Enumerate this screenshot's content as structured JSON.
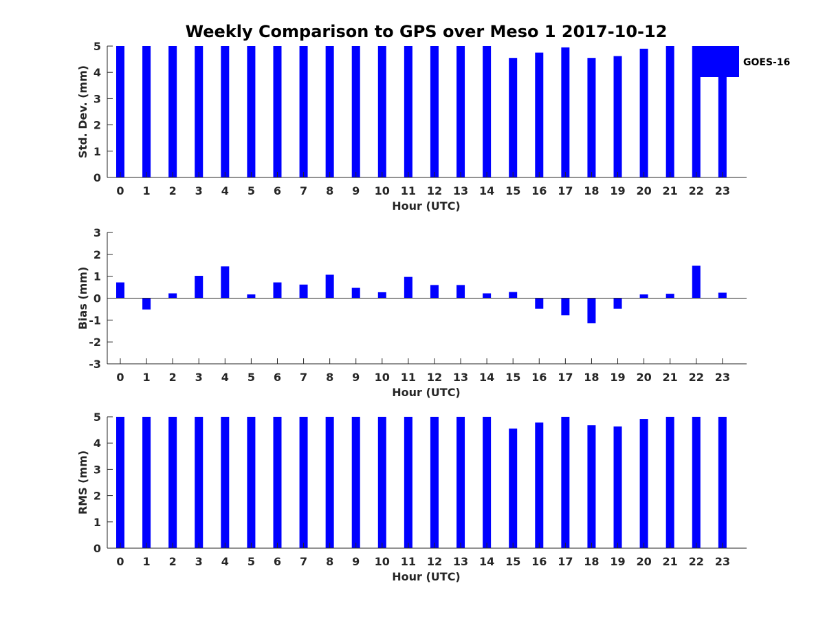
{
  "chart_data": {
    "title": "Weekly Comparison to GPS over Meso 1 2017-10-12",
    "bar_color": "#0000ff",
    "legend": {
      "label": "GOES-16",
      "placement": "top-right"
    },
    "panels": [
      {
        "type": "bar",
        "ylabel": "Std. Dev. (mm)",
        "xlabel": "Hour (UTC)",
        "ylim": [
          0,
          5
        ],
        "yticks": [
          0,
          1,
          2,
          3,
          4,
          5
        ],
        "categories": [
          "0",
          "1",
          "2",
          "3",
          "4",
          "5",
          "6",
          "7",
          "8",
          "9",
          "10",
          "11",
          "12",
          "13",
          "14",
          "15",
          "16",
          "17",
          "18",
          "19",
          "20",
          "21",
          "22",
          "23"
        ],
        "values": [
          5,
          5,
          5,
          5,
          5,
          5,
          5,
          5,
          5,
          5,
          5,
          5,
          5,
          5,
          5,
          4.55,
          4.75,
          4.95,
          4.55,
          4.62,
          4.9,
          5,
          5,
          5
        ]
      },
      {
        "type": "bar",
        "ylabel": "Bias (mm)",
        "xlabel": "Hour (UTC)",
        "ylim": [
          -3,
          3
        ],
        "yticks": [
          -3,
          -2,
          -1,
          0,
          1,
          2,
          3
        ],
        "categories": [
          "0",
          "1",
          "2",
          "3",
          "4",
          "5",
          "6",
          "7",
          "8",
          "9",
          "10",
          "11",
          "12",
          "13",
          "14",
          "15",
          "16",
          "17",
          "18",
          "19",
          "20",
          "21",
          "22",
          "23"
        ],
        "values": [
          0.72,
          -0.52,
          0.22,
          1.02,
          1.45,
          0.17,
          0.72,
          0.62,
          1.07,
          0.47,
          0.27,
          0.97,
          0.6,
          0.6,
          0.22,
          0.28,
          -0.48,
          -0.78,
          -1.15,
          -0.48,
          0.17,
          0.2,
          1.48,
          0.25
        ]
      },
      {
        "type": "bar",
        "ylabel": "RMS (mm)",
        "xlabel": "Hour (UTC)",
        "ylim": [
          0,
          5
        ],
        "yticks": [
          0,
          1,
          2,
          3,
          4,
          5
        ],
        "categories": [
          "0",
          "1",
          "2",
          "3",
          "4",
          "5",
          "6",
          "7",
          "8",
          "9",
          "10",
          "11",
          "12",
          "13",
          "14",
          "15",
          "16",
          "17",
          "18",
          "19",
          "20",
          "21",
          "22",
          "23"
        ],
        "values": [
          5,
          5,
          5,
          5,
          5,
          5,
          5,
          5,
          5,
          5,
          5,
          5,
          5,
          5,
          5,
          4.55,
          4.78,
          5,
          4.68,
          4.63,
          4.92,
          5,
          5,
          5
        ]
      }
    ]
  }
}
